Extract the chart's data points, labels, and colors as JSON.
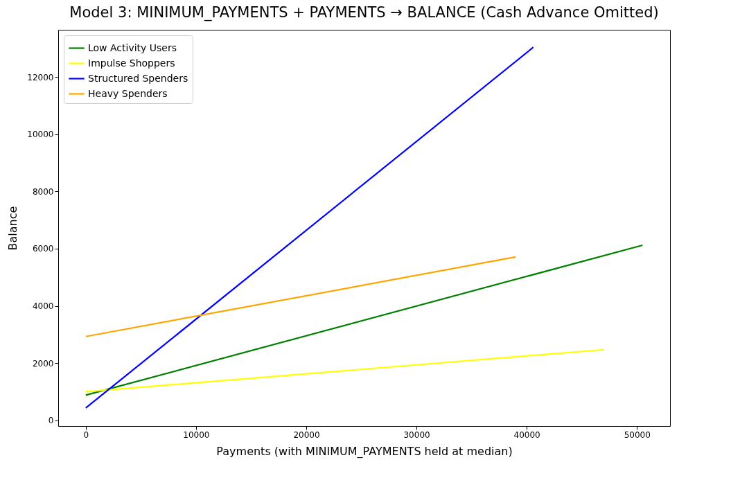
{
  "chart_data": {
    "type": "line",
    "title": "Model 3: MINIMUM_PAYMENTS + PAYMENTS → BALANCE (Cash Advance Omitted)",
    "xlabel": "Payments (with MINIMUM_PAYMENTS held at median)",
    "ylabel": "Balance",
    "series": [
      {
        "name": "Low Activity Users",
        "color": "#008000",
        "x": [
          0,
          50500
        ],
        "values": [
          880,
          6120
        ]
      },
      {
        "name": "Impulse Shoppers",
        "color": "#ffff00",
        "x": [
          0,
          47000
        ],
        "values": [
          1000,
          2470
        ]
      },
      {
        "name": "Structured Spenders",
        "color": "#0000ff",
        "x": [
          0,
          40600
        ],
        "values": [
          430,
          13040
        ]
      },
      {
        "name": "Heavy Spenders",
        "color": "#ffa500",
        "x": [
          0,
          39000
        ],
        "values": [
          2930,
          5710
        ]
      }
    ],
    "xlim": [
      -2500,
      53000
    ],
    "xticks": [
      0,
      10000,
      20000,
      30000,
      40000,
      50000
    ],
    "ylim": [
      -200,
      13650
    ],
    "yticks": [
      0,
      2000,
      4000,
      6000,
      8000,
      10000,
      12000
    ],
    "grid": false,
    "legend": "top left"
  }
}
